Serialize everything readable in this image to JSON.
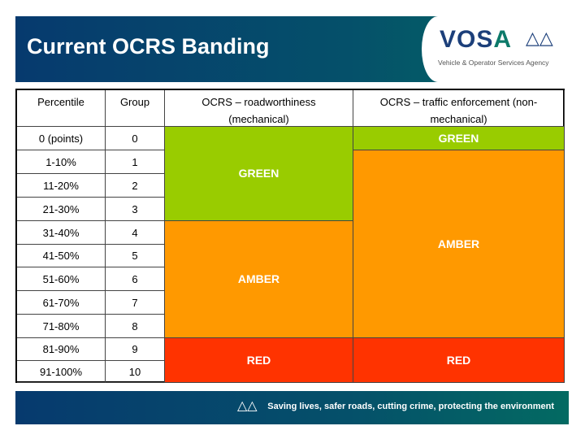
{
  "title": "Current OCRS Banding",
  "logo": {
    "name_a": "VOS",
    "name_b": "A",
    "agency": "Vehicle & Operator Services Agency"
  },
  "table": {
    "headers": [
      "Percentile",
      "Group",
      "OCRS – roadworthiness (mechanical)",
      "OCRS – traffic enforcement (non-mechanical)"
    ],
    "rows": [
      [
        "0 (points)",
        "0"
      ],
      [
        "1-10%",
        "1"
      ],
      [
        "11-20%",
        "2"
      ],
      [
        "21-30%",
        "3"
      ],
      [
        "31-40%",
        "4"
      ],
      [
        "41-50%",
        "5"
      ],
      [
        "51-60%",
        "6"
      ],
      [
        "61-70%",
        "7"
      ],
      [
        "71-80%",
        "8"
      ],
      [
        "81-90%",
        "9"
      ],
      [
        "91-100%",
        "10"
      ]
    ],
    "mechanical": [
      {
        "label": "GREEN",
        "groups": "0-3"
      },
      {
        "label": "AMBER",
        "groups": "4-8"
      },
      {
        "label": "RED",
        "groups": "9-10"
      }
    ],
    "non_mechanical": [
      {
        "label": "GREEN",
        "groups": "0"
      },
      {
        "label": "AMBER",
        "groups": "1-8"
      },
      {
        "label": "RED",
        "groups": "9-10"
      }
    ]
  },
  "colors": {
    "green": "#99cc00",
    "amber": "#ff9900",
    "red": "#ff3300"
  },
  "footer": {
    "tagline": "Saving lives, safer roads, cutting crime, protecting the environment"
  }
}
